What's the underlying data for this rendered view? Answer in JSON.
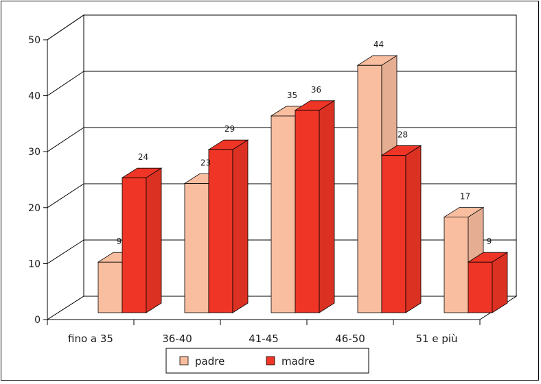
{
  "chart_data": {
    "type": "bar",
    "title": "",
    "xlabel": "",
    "ylabel": "",
    "categories": [
      "fino a 35",
      "36-40",
      "41-45",
      "46-50",
      "51 e più"
    ],
    "series": [
      {
        "name": "padre",
        "values": [
          9,
          23,
          35,
          44,
          17
        ],
        "color": "#f9bd9f"
      },
      {
        "name": "madre",
        "values": [
          24,
          29,
          36,
          28,
          9
        ],
        "color": "#ee3526"
      }
    ],
    "ylim": [
      0,
      50
    ],
    "yticks": [
      0,
      10,
      20,
      30,
      40,
      50
    ],
    "grid": true,
    "three_d": true,
    "legend": "bottom",
    "data_labels": true
  }
}
